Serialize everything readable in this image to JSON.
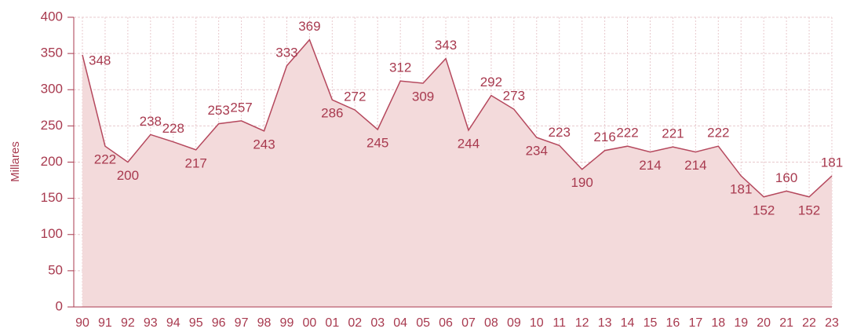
{
  "chart_data": {
    "type": "area",
    "y_label": "Millares",
    "categories": [
      "90",
      "91",
      "92",
      "93",
      "94",
      "95",
      "96",
      "97",
      "98",
      "99",
      "00",
      "01",
      "02",
      "03",
      "04",
      "05",
      "06",
      "07",
      "08",
      "09",
      "10",
      "11",
      "12",
      "13",
      "14",
      "15",
      "16",
      "17",
      "18",
      "19",
      "20",
      "21",
      "22",
      "23"
    ],
    "values": [
      348,
      222,
      200,
      238,
      228,
      217,
      253,
      257,
      243,
      333,
      369,
      286,
      272,
      245,
      312,
      309,
      343,
      244,
      292,
      273,
      234,
      223,
      190,
      216,
      222,
      214,
      221,
      214,
      222,
      181,
      152,
      160,
      152,
      181
    ],
    "color": "#b5485d",
    "fill": "#f3dadb",
    "ylim": [
      0,
      400
    ],
    "yticks": [
      0,
      50,
      100,
      150,
      200,
      250,
      300,
      350,
      400
    ],
    "grid": true
  }
}
